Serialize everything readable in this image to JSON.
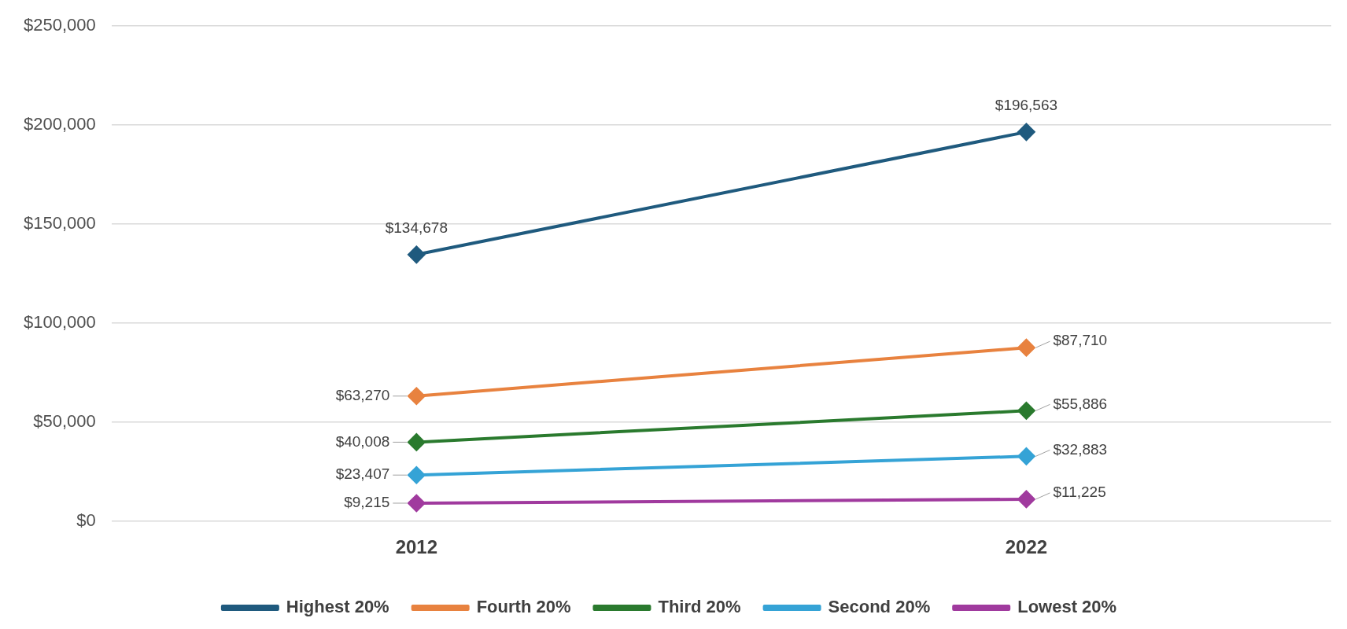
{
  "chart_data": {
    "type": "line",
    "categories": [
      "2012",
      "2022"
    ],
    "series": [
      {
        "name": "Highest 20%",
        "color": "#1f5a7e",
        "values": [
          134678,
          196563
        ]
      },
      {
        "name": "Fourth 20%",
        "color": "#e8823f",
        "values": [
          63270,
          87710
        ]
      },
      {
        "name": "Third 20%",
        "color": "#2a7a2e",
        "values": [
          40008,
          55886
        ]
      },
      {
        "name": "Second 20%",
        "color": "#35a3d6",
        "values": [
          23407,
          32883
        ]
      },
      {
        "name": "Lowest 20%",
        "color": "#a03a9e",
        "values": [
          9215,
          11225
        ]
      }
    ],
    "ylim": [
      0,
      250000
    ],
    "yticks": [
      {
        "value": 0,
        "label": "$0"
      },
      {
        "value": 50000,
        "label": "$50,000"
      },
      {
        "value": 100000,
        "label": "$100,000"
      },
      {
        "value": 150000,
        "label": "$150,000"
      },
      {
        "value": 200000,
        "label": "$200,000"
      },
      {
        "value": 250000,
        "label": "$250,000"
      }
    ],
    "grid": "y",
    "legend": "bottom",
    "marker": "diamond",
    "line_style": "solid",
    "value_labels": [
      [
        "$134,678",
        "$196,563"
      ],
      [
        "$63,270",
        "$87,710"
      ],
      [
        "$40,008",
        "$55,886"
      ],
      [
        "$23,407",
        "$32,883"
      ],
      [
        "$9,215",
        "$11,225"
      ]
    ]
  }
}
